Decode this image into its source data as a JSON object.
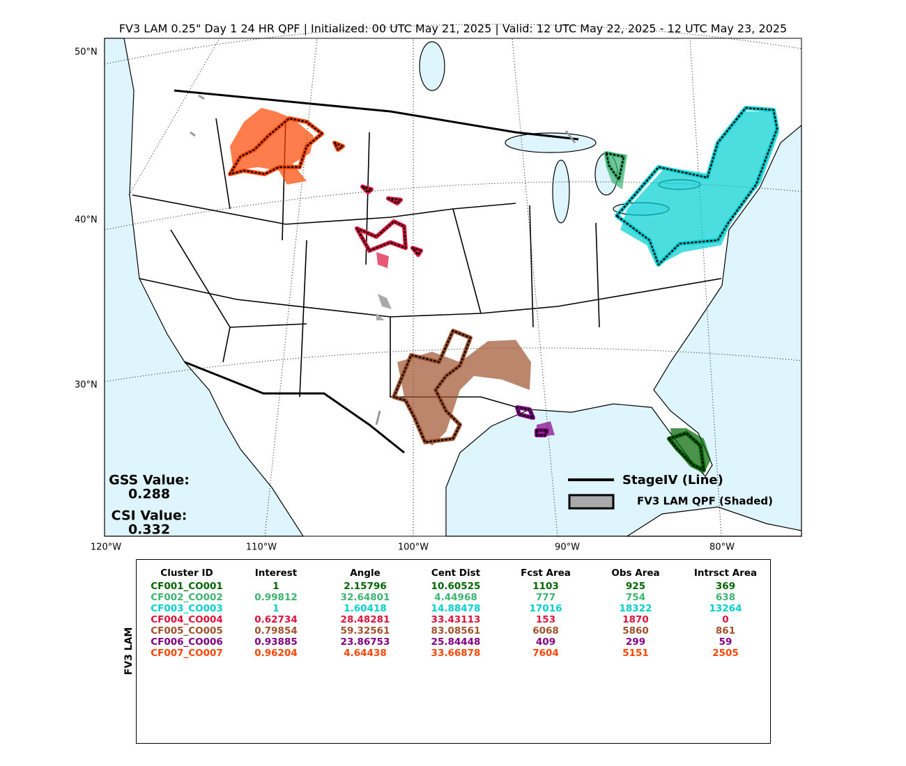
{
  "title": "FV3 LAM 0.25\" Day 1 24 HR QPF | Initialized: 00 UTC May 21, 2025 | Valid: 12 UTC May 22, 2025 - 12 UTC May 23, 2025",
  "map": {
    "lat_labels": [
      "50°N",
      "40°N",
      "30°N"
    ],
    "lon_labels": [
      "120°W",
      "110°W",
      "100°W",
      "90°W",
      "80°W"
    ]
  },
  "legend": {
    "line": "StageIV (Line)",
    "shaded": "FV3 LAM QPF (Shaded)"
  },
  "scores": {
    "gss_label": "GSS Value:",
    "gss": "0.288",
    "csi_label": "CSI Value:",
    "csi": "0.332"
  },
  "table": {
    "side_label": "FV3 LAM",
    "headers": [
      "Cluster ID",
      "Interest",
      "Angle",
      "Cent Dist",
      "Fcst Area",
      "Obs Area",
      "Intrsct Area"
    ],
    "rows": [
      {
        "color": "#006400",
        "cells": [
          "CF001_CO001",
          "1",
          "2.15796",
          "10.60525",
          "1103",
          "925",
          "369"
        ]
      },
      {
        "color": "#3cb371",
        "cells": [
          "CF002_CO002",
          "0.99812",
          "32.64801",
          "4.44968",
          "777",
          "754",
          "638"
        ]
      },
      {
        "color": "#00ced1",
        "cells": [
          "CF003_CO003",
          "1",
          "1.60418",
          "14.88478",
          "17016",
          "18322",
          "13264"
        ]
      },
      {
        "color": "#dc143c",
        "cells": [
          "CF004_CO004",
          "0.62734",
          "28.48281",
          "33.43113",
          "153",
          "1870",
          "0"
        ]
      },
      {
        "color": "#a0522d",
        "cells": [
          "CF005_CO005",
          "0.79854",
          "59.32561",
          "83.08561",
          "6068",
          "5860",
          "861"
        ]
      },
      {
        "color": "#800080",
        "cells": [
          "CF006_CO006",
          "0.93885",
          "23.86753",
          "25.84448",
          "409",
          "299",
          "59"
        ]
      },
      {
        "color": "#ff4500",
        "cells": [
          "CF007_CO007",
          "0.96204",
          "4.64438",
          "33.66878",
          "7604",
          "5151",
          "2505"
        ]
      }
    ]
  }
}
